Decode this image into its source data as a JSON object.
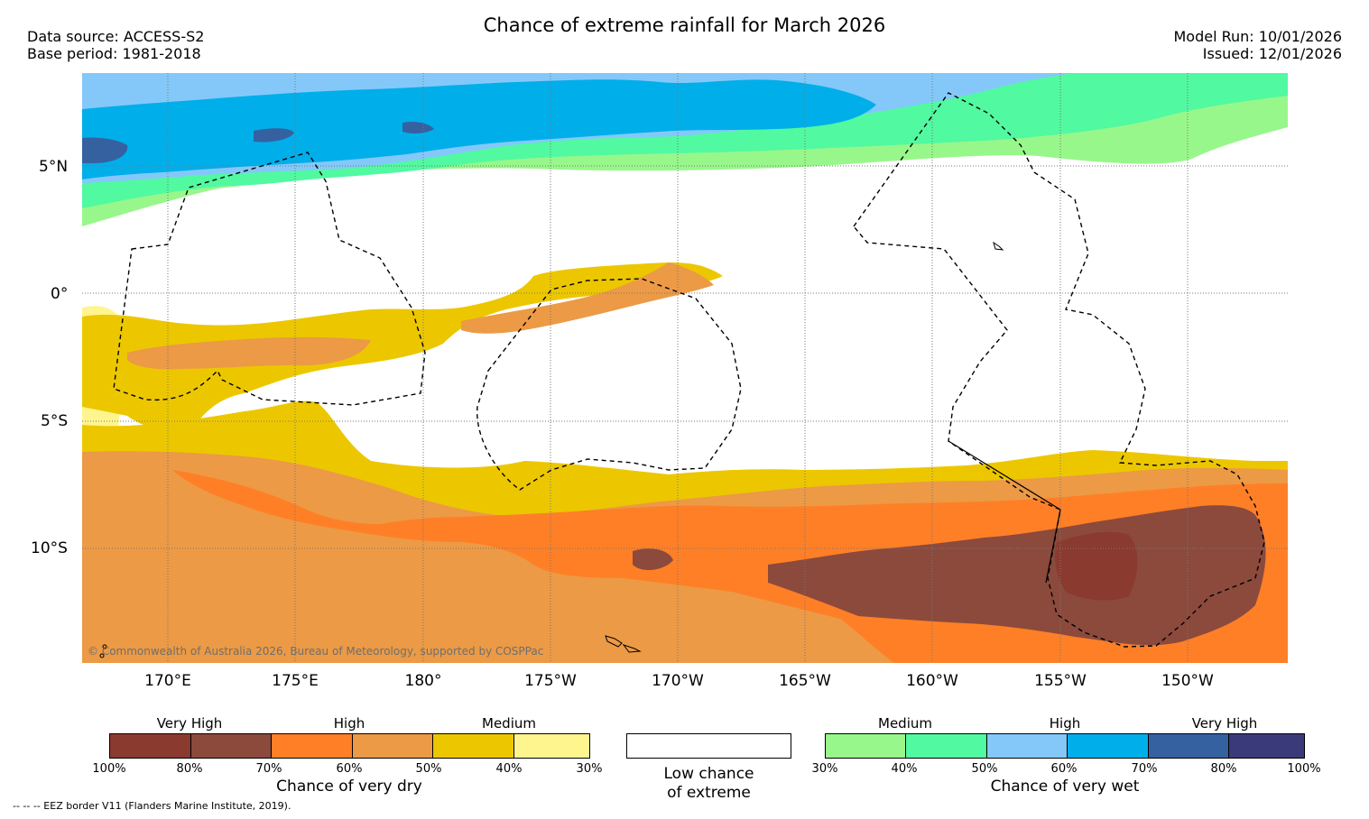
{
  "header": {
    "title": "Chance of extreme rainfall for March 2026",
    "data_source": "Data source: ACCESS-S2",
    "base_period": "Base period: 1981-2018",
    "model_run": "Model Run: 10/01/2026",
    "issued": "Issued: 12/01/2026"
  },
  "map": {
    "lat_labels": [
      "5°N",
      "0°",
      "5°S",
      "10°S"
    ],
    "lon_labels": [
      "170°E",
      "175°E",
      "180°",
      "175°W",
      "170°W",
      "165°W",
      "160°W",
      "155°W",
      "150°W"
    ],
    "copyright": "© Commonwealth of Australia 2026, Bureau of Meteorology, supported by COSPPac"
  },
  "legend": {
    "dry": {
      "categories": [
        "Very High",
        "High",
        "Medium"
      ],
      "ticks": [
        "100%",
        "80%",
        "70%",
        "60%",
        "50%",
        "40%",
        "30%"
      ],
      "colors": [
        "#8b3a2f",
        "#8b4a3c",
        "#ff7f27",
        "#ec9a45",
        "#ecc700",
        "#fff58f"
      ],
      "caption": "Chance of very dry"
    },
    "neutral": {
      "caption_line1": "Low chance",
      "caption_line2": "of extreme",
      "color": "#ffffff"
    },
    "wet": {
      "categories": [
        "Medium",
        "High",
        "Very High"
      ],
      "ticks": [
        "30%",
        "40%",
        "50%",
        "60%",
        "70%",
        "80%",
        "100%"
      ],
      "colors": [
        "#98f78a",
        "#51f9a1",
        "#84c8fa",
        "#00aeea",
        "#3561a0",
        "#3a3a7a"
      ],
      "caption": "Chance of very wet"
    }
  },
  "footer": {
    "eez_note": "--  --  -- EEZ border V11 (Flanders Marine Institute, 2019)."
  }
}
